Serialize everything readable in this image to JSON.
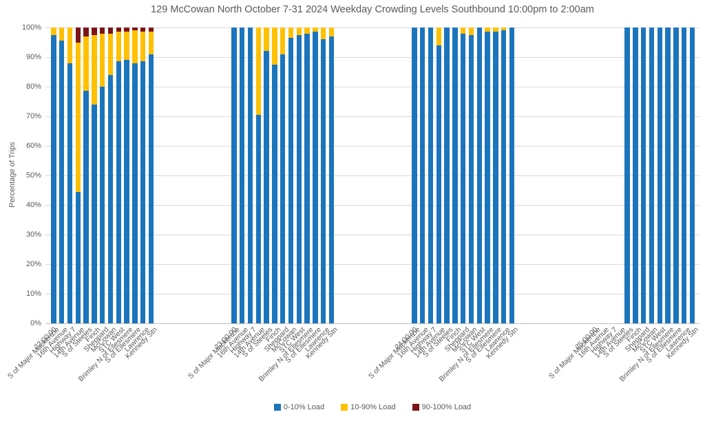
{
  "title": "129 McCowan North October 7-31 2024  Weekday Crowding Levels Southbound 10:00pm to 2:00am",
  "y_axis": {
    "title": "Percentage of Trips",
    "ticks": [
      "0%",
      "10%",
      "20%",
      "30%",
      "40%",
      "50%",
      "60%",
      "70%",
      "80%",
      "90%",
      "100%"
    ]
  },
  "legend": [
    {
      "label": "0-10% Load",
      "color": "#1B75BC"
    },
    {
      "label": "10-90% Load",
      "color": "#FFC000"
    },
    {
      "label": "90-100% Load",
      "color": "#7B1417"
    }
  ],
  "colors": {
    "series": [
      "#1B75BC",
      "#FFC000",
      "#7B1417"
    ],
    "gridline": "#D9D9D9",
    "axis_line": "#BFBFBF",
    "text": "#595959"
  },
  "chart_data": {
    "type": "bar",
    "stacked": true,
    "title": "129 McCowan North October 7-31 2024  Weekday Crowding Levels Southbound 10:00pm to 2:00am",
    "ylabel": "Percentage of Trips",
    "ylim": [
      0,
      100
    ],
    "y_tick_step": 10,
    "grid": true,
    "legend_position": "bottom",
    "series_names": [
      "0-10% Load",
      "10-90% Load",
      "90-100% Load"
    ],
    "categories": [
      "S of Major Mackenzie",
      "16th Avenue",
      "Highway 7",
      "14th Avenue",
      "S of Steeles",
      "Finch",
      "Sheppard",
      "McCowan",
      "STC West",
      "Brimley N of Ellesmere",
      "S of Ellesmere",
      "Lawrence",
      "Kennedy Stn"
    ],
    "groups": [
      {
        "time": "22:00:00",
        "values": [
          [
            97.5,
            2.5,
            0
          ],
          [
            95.5,
            4.5,
            0
          ],
          [
            88,
            12,
            0
          ],
          [
            44.5,
            50.5,
            5
          ],
          [
            78.5,
            18.5,
            3
          ],
          [
            74,
            23.5,
            2.5
          ],
          [
            80,
            18,
            2
          ],
          [
            84,
            14,
            2
          ],
          [
            88.5,
            10,
            1.5
          ],
          [
            89,
            9.5,
            1.5
          ],
          [
            88,
            11,
            1
          ],
          [
            88.5,
            10,
            1.5
          ],
          [
            91,
            7.5,
            1.5
          ]
        ]
      },
      {
        "time": "23:00:00",
        "values": [
          [
            100,
            0,
            0
          ],
          [
            100,
            0,
            0
          ],
          [
            100,
            0,
            0
          ],
          [
            70.5,
            29.5,
            0
          ],
          [
            92,
            8,
            0
          ],
          [
            87.5,
            12.5,
            0
          ],
          [
            91,
            9,
            0
          ],
          [
            96.5,
            3.5,
            0
          ],
          [
            97.5,
            2.5,
            0
          ],
          [
            98,
            2,
            0
          ],
          [
            98.5,
            1.5,
            0
          ],
          [
            96,
            4,
            0
          ],
          [
            97,
            3,
            0
          ]
        ]
      },
      {
        "time": "24:00:00",
        "values": [
          [
            100,
            0,
            0
          ],
          [
            100,
            0,
            0
          ],
          [
            100,
            0,
            0
          ],
          [
            94,
            6,
            0
          ],
          [
            100,
            0,
            0
          ],
          [
            100,
            0,
            0
          ],
          [
            98,
            2,
            0
          ],
          [
            97.5,
            2.5,
            0
          ],
          [
            100,
            0,
            0
          ],
          [
            98.5,
            1.5,
            0
          ],
          [
            98.5,
            1.5,
            0
          ],
          [
            99,
            1,
            0
          ],
          [
            100,
            0,
            0
          ]
        ]
      },
      {
        "time": "25:00:00",
        "values": [
          null,
          null,
          null,
          null,
          [
            100,
            0,
            0
          ],
          [
            100,
            0,
            0
          ],
          [
            100,
            0,
            0
          ],
          [
            100,
            0,
            0
          ],
          [
            100,
            0,
            0
          ],
          [
            100,
            0,
            0
          ],
          [
            100,
            0,
            0
          ],
          [
            100,
            0,
            0
          ],
          [
            100,
            0,
            0
          ]
        ]
      }
    ]
  }
}
